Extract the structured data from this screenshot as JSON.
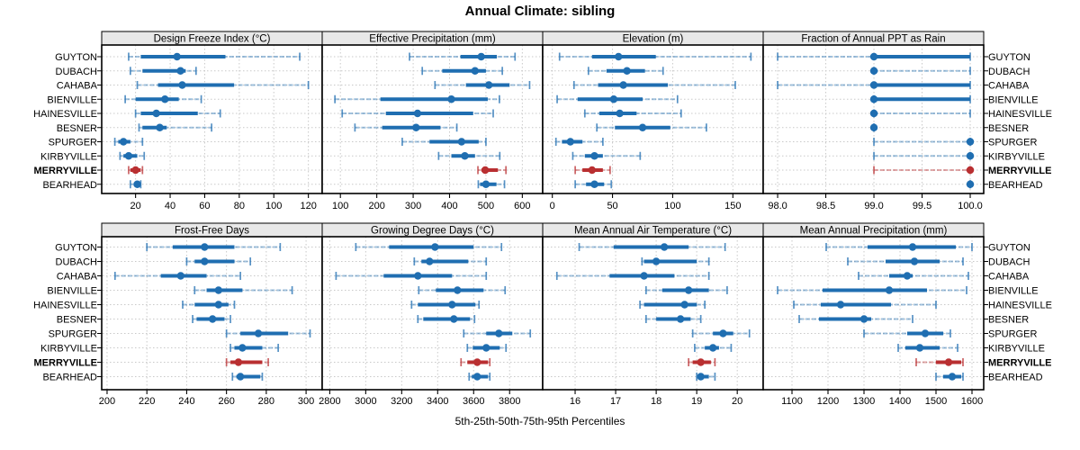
{
  "title": "Annual Climate: sibling",
  "xlabel": "5th-25th-50th-75th-95th Percentiles",
  "percentiles": [
    5,
    25,
    50,
    75,
    95
  ],
  "categories": [
    "GUYTON",
    "DUBACH",
    "CAHABA",
    "BIENVILLE",
    "HAINESVILLE",
    "BESNER",
    "SPURGER",
    "KIRBYVILLE",
    "MERRYVILLE",
    "BEARHEAD"
  ],
  "highlight": "MERRYVILLE",
  "colors": {
    "series_blue": "#1f6eb1",
    "highlight_red": "#b92f31",
    "gridline": "#c9c9c9",
    "strip_bg": "#e8e8e8",
    "panel_border": "#000000",
    "text": "#000000"
  },
  "chart_data": [
    {
      "type": "dotplot-range",
      "row": 0,
      "col": 0,
      "title": "Design Freeze Index (°C)",
      "domain": [
        0.4,
        128
      ],
      "tick_values": [
        20,
        40,
        60,
        80,
        100,
        120
      ],
      "tick_labels": [
        "20",
        "40",
        "60",
        "80",
        "100",
        "120"
      ],
      "series": [
        {
          "name": "GUYTON",
          "p": [
            16,
            23,
            44,
            72,
            115
          ]
        },
        {
          "name": "DUBACH",
          "p": [
            17,
            24,
            46,
            49,
            55
          ]
        },
        {
          "name": "CAHABA",
          "p": [
            21,
            33,
            47,
            77,
            120
          ]
        },
        {
          "name": "BIENVILLE",
          "p": [
            14,
            20,
            37,
            45,
            58
          ]
        },
        {
          "name": "HAINESVILLE",
          "p": [
            20,
            23,
            32,
            56,
            69
          ]
        },
        {
          "name": "BESNER",
          "p": [
            22,
            24,
            34,
            38,
            64
          ]
        },
        {
          "name": "SPURGER",
          "p": [
            8,
            10,
            13,
            17,
            24
          ]
        },
        {
          "name": "KIRBYVILLE",
          "p": [
            11,
            13,
            16,
            21,
            25
          ]
        },
        {
          "name": "MERRYVILLE",
          "p": [
            16,
            17,
            20,
            23,
            24
          ]
        },
        {
          "name": "BEARHEAD",
          "p": [
            17,
            19,
            21,
            22,
            23
          ]
        }
      ]
    },
    {
      "type": "dotplot-range",
      "row": 0,
      "col": 1,
      "title": "Effective Precipitation (mm)",
      "domain": [
        50,
        656
      ],
      "tick_values": [
        100,
        200,
        300,
        400,
        500,
        600
      ],
      "tick_labels": [
        "100",
        "200",
        "300",
        "400",
        "500",
        "600"
      ],
      "series": [
        {
          "name": "GUYTON",
          "p": [
            290,
            430,
            487,
            530,
            580
          ]
        },
        {
          "name": "DUBACH",
          "p": [
            325,
            380,
            470,
            500,
            545
          ]
        },
        {
          "name": "CAHABA",
          "p": [
            360,
            445,
            508,
            565,
            620
          ]
        },
        {
          "name": "BIENVILLE",
          "p": [
            85,
            210,
            405,
            505,
            537
          ]
        },
        {
          "name": "HAINESVILLE",
          "p": [
            105,
            225,
            312,
            465,
            520
          ]
        },
        {
          "name": "BESNER",
          "p": [
            140,
            215,
            308,
            375,
            420
          ]
        },
        {
          "name": "SPURGER",
          "p": [
            270,
            345,
            433,
            480,
            500
          ]
        },
        {
          "name": "KIRBYVILLE",
          "p": [
            370,
            405,
            442,
            470,
            538
          ]
        },
        {
          "name": "MERRYVILLE",
          "p": [
            478,
            488,
            498,
            533,
            555
          ]
        },
        {
          "name": "BEARHEAD",
          "p": [
            479,
            484,
            500,
            529,
            551
          ]
        }
      ]
    },
    {
      "type": "dotplot-range",
      "row": 0,
      "col": 2,
      "title": "Elevation (m)",
      "domain": [
        -8,
        175.2
      ],
      "tick_values": [
        0,
        50,
        100,
        150
      ],
      "tick_labels": [
        "0",
        "50",
        "100",
        "150"
      ],
      "series": [
        {
          "name": "GUYTON",
          "p": [
            6,
            33,
            55,
            86,
            165
          ]
        },
        {
          "name": "DUBACH",
          "p": [
            30,
            45,
            62,
            77,
            92
          ]
        },
        {
          "name": "CAHABA",
          "p": [
            18,
            38,
            59,
            96,
            152
          ]
        },
        {
          "name": "BIENVILLE",
          "p": [
            4,
            21,
            51,
            75,
            104
          ]
        },
        {
          "name": "HAINESVILLE",
          "p": [
            27,
            39,
            56,
            70,
            107
          ]
        },
        {
          "name": "BESNER",
          "p": [
            37,
            52,
            75,
            98,
            128
          ]
        },
        {
          "name": "SPURGER",
          "p": [
            3,
            8,
            15,
            25,
            42
          ]
        },
        {
          "name": "KIRBYVILLE",
          "p": [
            17,
            27,
            35,
            42,
            73
          ]
        },
        {
          "name": "MERRYVILLE",
          "p": [
            19,
            25,
            33,
            42,
            48
          ]
        },
        {
          "name": "BEARHEAD",
          "p": [
            19,
            28,
            35,
            43,
            49
          ]
        }
      ]
    },
    {
      "type": "dotplot-range",
      "row": 0,
      "col": 3,
      "title": "Fraction of Annual PPT as Rain",
      "domain": [
        97.85,
        100.14
      ],
      "tick_values": [
        98.0,
        98.5,
        99.0,
        99.5,
        100.0
      ],
      "tick_labels": [
        "98.0",
        "98.5",
        "99.0",
        "99.5",
        "100.0"
      ],
      "series": [
        {
          "name": "GUYTON",
          "p": [
            98.0,
            99.0,
            99.0,
            100.0,
            100.0
          ]
        },
        {
          "name": "DUBACH",
          "p": [
            99.0,
            99.0,
            99.0,
            99.0,
            100.0
          ]
        },
        {
          "name": "CAHABA",
          "p": [
            98.0,
            99.0,
            99.0,
            100.0,
            100.0
          ]
        },
        {
          "name": "BIENVILLE",
          "p": [
            99.0,
            99.0,
            99.0,
            100.0,
            100.0
          ]
        },
        {
          "name": "HAINESVILLE",
          "p": [
            99.0,
            99.0,
            99.0,
            99.0,
            100.0
          ]
        },
        {
          "name": "BESNER",
          "p": [
            99.0,
            99.0,
            99.0,
            99.0,
            99.0
          ]
        },
        {
          "name": "SPURGER",
          "p": [
            99.0,
            100.0,
            100.0,
            100.0,
            100.0
          ]
        },
        {
          "name": "KIRBYVILLE",
          "p": [
            99.0,
            100.0,
            100.0,
            100.0,
            100.0
          ]
        },
        {
          "name": "MERRYVILLE",
          "p": [
            99.0,
            100.0,
            100.0,
            100.0,
            100.0
          ]
        },
        {
          "name": "BEARHEAD",
          "p": [
            100.0,
            100.0,
            100.0,
            100.0,
            100.0
          ]
        }
      ]
    },
    {
      "type": "dotplot-range",
      "row": 1,
      "col": 0,
      "title": "Frost-Free Days",
      "domain": [
        197.3,
        308.1
      ],
      "tick_values": [
        200,
        220,
        240,
        260,
        280,
        300
      ],
      "tick_labels": [
        "200",
        "220",
        "240",
        "260",
        "280",
        "300"
      ],
      "series": [
        {
          "name": "GUYTON",
          "p": [
            220,
            233,
            249,
            264,
            287
          ]
        },
        {
          "name": "DUBACH",
          "p": [
            240,
            244,
            249,
            264,
            272
          ]
        },
        {
          "name": "CAHABA",
          "p": [
            204,
            227,
            237,
            250,
            267
          ]
        },
        {
          "name": "BIENVILLE",
          "p": [
            244,
            250,
            256,
            268,
            293
          ]
        },
        {
          "name": "HAINESVILLE",
          "p": [
            238,
            244,
            256,
            261,
            264
          ]
        },
        {
          "name": "BESNER",
          "p": [
            243,
            245,
            253,
            259,
            262
          ]
        },
        {
          "name": "SPURGER",
          "p": [
            260,
            267,
            276,
            291,
            302
          ]
        },
        {
          "name": "KIRBYVILLE",
          "p": [
            262,
            264,
            268,
            278,
            286
          ]
        },
        {
          "name": "MERRYVILLE",
          "p": [
            260,
            262,
            266,
            278,
            281
          ]
        },
        {
          "name": "BEARHEAD",
          "p": [
            263,
            265,
            267,
            277,
            278
          ]
        }
      ]
    },
    {
      "type": "dotplot-range",
      "row": 1,
      "col": 1,
      "title": "Growing Degree Days (°C)",
      "domain": [
        2758,
        3984
      ],
      "tick_values": [
        2800,
        3000,
        3200,
        3400,
        3600,
        3800
      ],
      "tick_labels": [
        "2800",
        "3000",
        "3200",
        "3400",
        "3600",
        "3800"
      ],
      "series": [
        {
          "name": "GUYTON",
          "p": [
            2945,
            3130,
            3385,
            3600,
            3755
          ]
        },
        {
          "name": "DUBACH",
          "p": [
            3270,
            3310,
            3355,
            3570,
            3670
          ]
        },
        {
          "name": "CAHABA",
          "p": [
            2835,
            3100,
            3290,
            3480,
            3670
          ]
        },
        {
          "name": "BIENVILLE",
          "p": [
            3295,
            3390,
            3510,
            3655,
            3775
          ]
        },
        {
          "name": "HAINESVILLE",
          "p": [
            3255,
            3290,
            3480,
            3610,
            3630
          ]
        },
        {
          "name": "BESNER",
          "p": [
            3290,
            3320,
            3490,
            3580,
            3605
          ]
        },
        {
          "name": "SPURGER",
          "p": [
            3545,
            3670,
            3740,
            3815,
            3915
          ]
        },
        {
          "name": "KIRBYVILLE",
          "p": [
            3565,
            3595,
            3670,
            3745,
            3780
          ]
        },
        {
          "name": "MERRYVILLE",
          "p": [
            3530,
            3565,
            3620,
            3680,
            3690
          ]
        },
        {
          "name": "BEARHEAD",
          "p": [
            3575,
            3590,
            3620,
            3680,
            3690
          ]
        }
      ]
    },
    {
      "type": "dotplot-range",
      "row": 1,
      "col": 2,
      "title": "Mean Annual Air Temperature (°C)",
      "domain": [
        15.2,
        20.64
      ],
      "tick_values": [
        16,
        17,
        18,
        19,
        20
      ],
      "tick_labels": [
        "16",
        "17",
        "18",
        "19",
        "20"
      ],
      "series": [
        {
          "name": "GUYTON",
          "p": [
            16.1,
            16.95,
            18.2,
            18.8,
            19.7
          ]
        },
        {
          "name": "DUBACH",
          "p": [
            17.65,
            17.7,
            18.0,
            19.0,
            19.3
          ]
        },
        {
          "name": "CAHABA",
          "p": [
            15.55,
            16.85,
            17.7,
            18.45,
            19.3
          ]
        },
        {
          "name": "BIENVILLE",
          "p": [
            17.75,
            18.15,
            18.8,
            19.3,
            19.75
          ]
        },
        {
          "name": "HAINESVILLE",
          "p": [
            17.6,
            17.7,
            18.7,
            19.0,
            19.2
          ]
        },
        {
          "name": "BESNER",
          "p": [
            17.75,
            18.0,
            18.6,
            18.85,
            19.1
          ]
        },
        {
          "name": "SPURGER",
          "p": [
            18.9,
            19.4,
            19.65,
            19.9,
            20.3
          ]
        },
        {
          "name": "KIRBYVILLE",
          "p": [
            18.95,
            19.2,
            19.4,
            19.55,
            19.85
          ]
        },
        {
          "name": "MERRYVILLE",
          "p": [
            18.8,
            18.9,
            19.1,
            19.35,
            19.45
          ]
        },
        {
          "name": "BEARHEAD",
          "p": [
            19.0,
            19.05,
            19.1,
            19.3,
            19.45
          ]
        }
      ]
    },
    {
      "type": "dotplot-range",
      "row": 1,
      "col": 3,
      "title": "Mean Annual Precipitation (mm)",
      "domain": [
        1020,
        1632.5
      ],
      "tick_values": [
        1100,
        1200,
        1300,
        1400,
        1500,
        1600
      ],
      "tick_labels": [
        "1100",
        "1200",
        "1300",
        "1400",
        "1500",
        "1600"
      ],
      "series": [
        {
          "name": "GUYTON",
          "p": [
            1195,
            1310,
            1435,
            1555,
            1600
          ]
        },
        {
          "name": "DUBACH",
          "p": [
            1255,
            1360,
            1440,
            1510,
            1575
          ]
        },
        {
          "name": "CAHABA",
          "p": [
            1285,
            1370,
            1420,
            1435,
            1590
          ]
        },
        {
          "name": "BIENVILLE",
          "p": [
            1060,
            1185,
            1370,
            1475,
            1585
          ]
        },
        {
          "name": "HAINESVILLE",
          "p": [
            1105,
            1180,
            1235,
            1375,
            1500
          ]
        },
        {
          "name": "BESNER",
          "p": [
            1120,
            1175,
            1300,
            1320,
            1435
          ]
        },
        {
          "name": "SPURGER",
          "p": [
            1300,
            1420,
            1470,
            1520,
            1540
          ]
        },
        {
          "name": "KIRBYVILLE",
          "p": [
            1395,
            1415,
            1455,
            1510,
            1560
          ]
        },
        {
          "name": "MERRYVILLE",
          "p": [
            1445,
            1500,
            1535,
            1570,
            1575
          ]
        },
        {
          "name": "BEARHEAD",
          "p": [
            1500,
            1520,
            1545,
            1570,
            1575
          ]
        }
      ]
    }
  ]
}
